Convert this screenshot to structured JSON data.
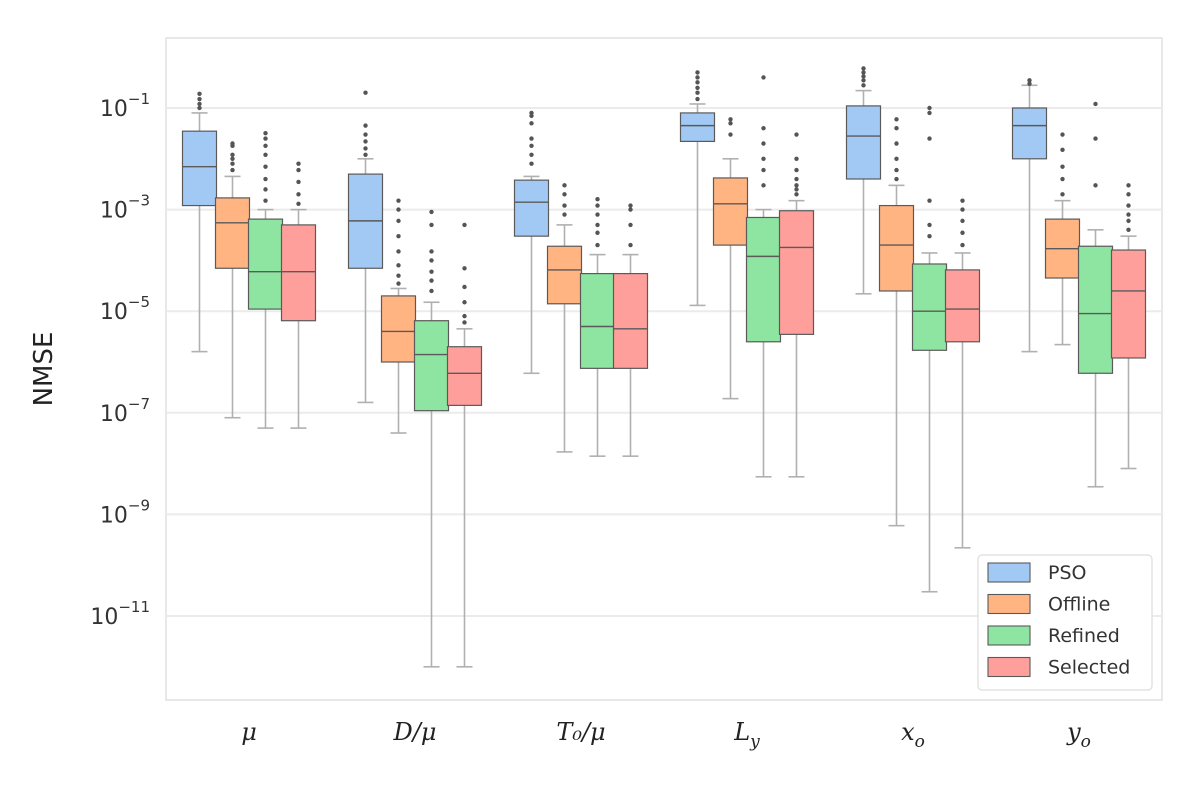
{
  "chart_data": {
    "type": "box",
    "title": "",
    "xlabel": "",
    "ylabel": "NMSE",
    "yscale": "log",
    "ylim_exp": [
      -12.6,
      0.8
    ],
    "grid": "horizontal",
    "legend_position": "bottom-right",
    "y_ticks": [
      {
        "base": "10",
        "exp": "−1",
        "value": 0.1
      },
      {
        "base": "10",
        "exp": "−3",
        "value": 0.001
      },
      {
        "base": "10",
        "exp": "−5",
        "value": 1e-05
      },
      {
        "base": "10",
        "exp": "−7",
        "value": 1e-07
      },
      {
        "base": "10",
        "exp": "−9",
        "value": 1e-09
      },
      {
        "base": "10",
        "exp": "−11",
        "value": 1e-11
      }
    ],
    "categories": [
      {
        "main": "μ",
        "sub": ""
      },
      {
        "main": "D/μ",
        "sub": ""
      },
      {
        "main": "T₀/μ",
        "sub": ""
      },
      {
        "main": "L",
        "sub": "y"
      },
      {
        "main": "x",
        "sub": "o"
      },
      {
        "main": "y",
        "sub": "o"
      }
    ],
    "series": [
      {
        "name": "PSO",
        "color": "#a1c9f4",
        "boxes": [
          {
            "whislo": 1.6e-06,
            "q1": 0.0012,
            "med": 0.007,
            "q3": 0.035,
            "whishi": 0.08,
            "fliers": [
              0.1,
              0.12,
              0.15,
              0.19
            ]
          },
          {
            "whislo": 1.6e-07,
            "q1": 7e-05,
            "med": 0.0006,
            "q3": 0.005,
            "whishi": 0.01,
            "fliers": [
              0.012,
              0.016,
              0.022,
              0.03,
              0.045,
              0.2
            ]
          },
          {
            "whislo": 6e-07,
            "q1": 0.0003,
            "med": 0.0014,
            "q3": 0.0038,
            "whishi": 0.0045,
            "fliers": [
              0.008,
              0.012,
              0.018,
              0.025,
              0.05,
              0.07,
              0.08
            ]
          },
          {
            "whislo": 1.3e-05,
            "q1": 0.022,
            "med": 0.045,
            "q3": 0.08,
            "whishi": 0.12,
            "fliers": [
              0.15,
              0.2,
              0.25,
              0.32,
              0.4,
              0.5
            ]
          },
          {
            "whislo": 2.2e-05,
            "q1": 0.004,
            "med": 0.028,
            "q3": 0.11,
            "whishi": 0.22,
            "fliers": [
              0.28,
              0.35,
              0.42,
              0.5,
              0.6
            ]
          },
          {
            "whislo": 1.6e-06,
            "q1": 0.01,
            "med": 0.045,
            "q3": 0.1,
            "whishi": 0.28,
            "fliers": [
              0.3,
              0.35
            ]
          }
        ]
      },
      {
        "name": "Offline",
        "color": "#ffb482",
        "boxes": [
          {
            "whislo": 8e-08,
            "q1": 7e-05,
            "med": 0.00055,
            "q3": 0.0017,
            "whishi": 0.0045,
            "fliers": [
              0.006,
              0.008,
              0.01,
              0.012,
              0.018,
              0.02
            ]
          },
          {
            "whislo": 4e-08,
            "q1": 1e-06,
            "med": 4e-06,
            "q3": 2e-05,
            "whishi": 2.8e-05,
            "fliers": [
              3.5e-05,
              5e-05,
              8e-05,
              0.00015,
              0.0003,
              0.0006,
              0.001,
              0.0015
            ]
          },
          {
            "whislo": 1.7e-08,
            "q1": 1.4e-05,
            "med": 6.5e-05,
            "q3": 0.00019,
            "whishi": 0.0005,
            "fliers": [
              0.0008,
              0.0012,
              0.002,
              0.003
            ]
          },
          {
            "whislo": 1.9e-07,
            "q1": 0.0002,
            "med": 0.0013,
            "q3": 0.0042,
            "whishi": 0.01,
            "fliers": [
              0.03,
              0.05,
              0.06
            ]
          },
          {
            "whislo": 6e-10,
            "q1": 2.5e-05,
            "med": 0.0002,
            "q3": 0.0012,
            "whishi": 0.003,
            "fliers": [
              0.004,
              0.006,
              0.01,
              0.02,
              0.04,
              0.06
            ]
          },
          {
            "whislo": 2.2e-06,
            "q1": 4.5e-05,
            "med": 0.00017,
            "q3": 0.00065,
            "whishi": 0.0015,
            "fliers": [
              0.002,
              0.004,
              0.007,
              0.015,
              0.03
            ]
          }
        ]
      },
      {
        "name": "Refined",
        "color": "#8de5a1",
        "boxes": [
          {
            "whislo": 5e-08,
            "q1": 1.1e-05,
            "med": 6e-05,
            "q3": 0.00065,
            "whishi": 0.001,
            "fliers": [
              0.0015,
              0.0025,
              0.004,
              0.007,
              0.012,
              0.018,
              0.025,
              0.032
            ]
          },
          {
            "whislo": 1e-12,
            "q1": 1.1e-07,
            "med": 1.4e-06,
            "q3": 6.5e-06,
            "whishi": 1.5e-05,
            "fliers": [
              2.5e-05,
              4e-05,
              6e-05,
              0.0001,
              0.00015,
              0.0005,
              0.0009
            ]
          },
          {
            "whislo": 1.4e-08,
            "q1": 7.5e-07,
            "med": 5e-06,
            "q3": 5.5e-05,
            "whishi": 0.00013,
            "fliers": [
              0.0002,
              0.00035,
              0.0005,
              0.0008,
              0.0012,
              0.0016
            ]
          },
          {
            "whislo": 5.5e-09,
            "q1": 2.5e-06,
            "med": 0.00012,
            "q3": 0.0007,
            "whishi": 0.001,
            "fliers": [
              0.003,
              0.006,
              0.01,
              0.02,
              0.04,
              0.4
            ]
          },
          {
            "whislo": 3e-11,
            "q1": 1.7e-06,
            "med": 1e-05,
            "q3": 8.5e-05,
            "whishi": 0.00014,
            "fliers": [
              0.0003,
              0.0005,
              0.0015,
              0.025,
              0.08,
              0.1
            ]
          },
          {
            "whislo": 3.5e-09,
            "q1": 6e-07,
            "med": 9e-06,
            "q3": 0.00019,
            "whishi": 0.0004,
            "fliers": [
              0.003,
              0.025,
              0.12
            ]
          }
        ]
      },
      {
        "name": "Selected",
        "color": "#ff9f9b",
        "boxes": [
          {
            "whislo": 5e-08,
            "q1": 6.5e-06,
            "med": 6e-05,
            "q3": 0.0005,
            "whishi": 0.001,
            "fliers": [
              0.0013,
              0.002,
              0.0035,
              0.006,
              0.008
            ]
          },
          {
            "whislo": 1e-12,
            "q1": 1.4e-07,
            "med": 6e-07,
            "q3": 2e-06,
            "whishi": 4.5e-06,
            "fliers": [
              6e-06,
              8e-06,
              1.5e-05,
              3e-05,
              7e-05,
              0.0005
            ]
          },
          {
            "whislo": 1.4e-08,
            "q1": 7.5e-07,
            "med": 4.5e-06,
            "q3": 5.5e-05,
            "whishi": 0.00013,
            "fliers": [
              0.0002,
              0.0005,
              0.001,
              0.0012
            ]
          },
          {
            "whislo": 5.5e-09,
            "q1": 3.5e-06,
            "med": 0.00018,
            "q3": 0.00095,
            "whishi": 0.0015,
            "fliers": [
              0.002,
              0.0025,
              0.003,
              0.004,
              0.006,
              0.01,
              0.03
            ]
          },
          {
            "whislo": 2.2e-10,
            "q1": 2.5e-06,
            "med": 1.1e-05,
            "q3": 6.5e-05,
            "whishi": 0.00014,
            "fliers": [
              0.0002,
              0.00035,
              0.0006,
              0.001,
              0.0015
            ]
          },
          {
            "whislo": 8e-09,
            "q1": 1.2e-06,
            "med": 2.5e-05,
            "q3": 0.00016,
            "whishi": 0.0003,
            "fliers": [
              0.0004,
              0.0006,
              0.0008,
              0.0012,
              0.002,
              0.003
            ]
          }
        ]
      }
    ]
  }
}
